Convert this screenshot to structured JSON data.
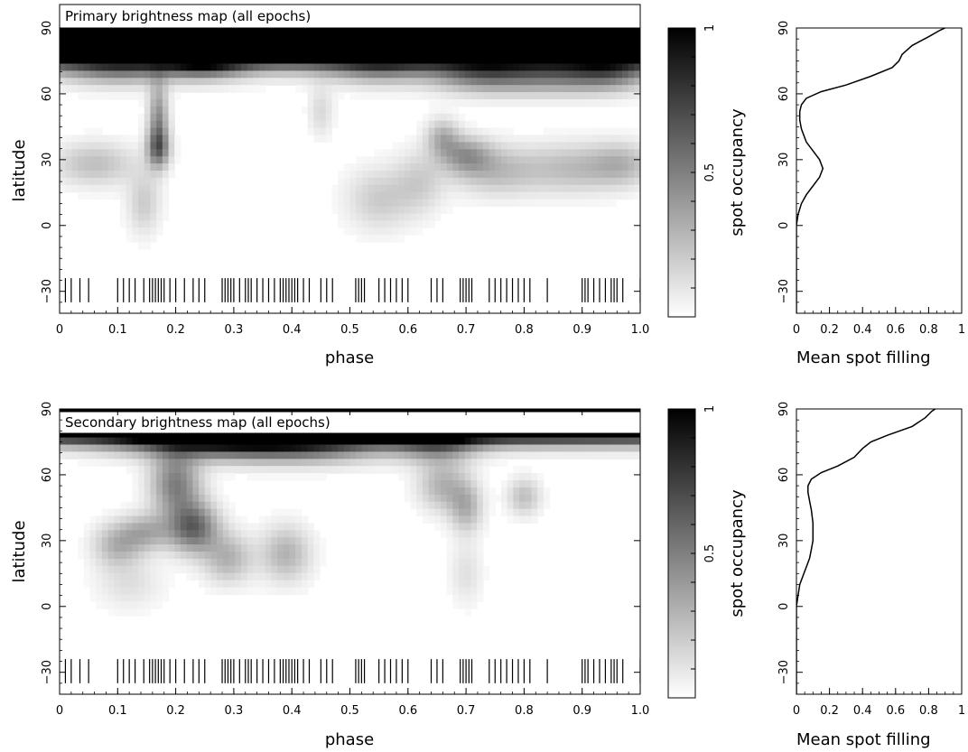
{
  "chart_data": [
    {
      "type": "heatmap",
      "title": "Primary brightness map (all epochs)",
      "xlabel": "phase",
      "ylabel": "latitude",
      "xlim": [
        0,
        1.0
      ],
      "ylim": [
        -40,
        90
      ],
      "xticks": [
        "0",
        "0.1",
        "0.2",
        "0.3",
        "0.4",
        "0.5",
        "0.6",
        "0.7",
        "0.8",
        "0.9",
        "1.0"
      ],
      "yticks": [
        "−30",
        "0",
        "30",
        "60",
        "90"
      ],
      "colorbar": {
        "label": "spot occupancy",
        "ticks": [
          "0.5",
          "1"
        ],
        "range": [
          0,
          1
        ]
      },
      "spots": [
        {
          "phase": 0.05,
          "lat": 84,
          "sx": 0.9,
          "sy": 7,
          "amp": 0.85
        },
        {
          "phase": 0.5,
          "lat": 84,
          "sx": 0.9,
          "sy": 7,
          "amp": 0.75
        },
        {
          "phase": 0.95,
          "lat": 84,
          "sx": 0.9,
          "sy": 7,
          "amp": 0.85
        },
        {
          "phase": 0.25,
          "lat": 76,
          "sx": 0.05,
          "sy": 6,
          "amp": 0.55
        },
        {
          "phase": 0.1,
          "lat": 72,
          "sx": 0.07,
          "sy": 6,
          "amp": 0.35
        },
        {
          "phase": 0.55,
          "lat": 72,
          "sx": 0.06,
          "sy": 6,
          "amp": 0.3
        },
        {
          "phase": 0.72,
          "lat": 69,
          "sx": 0.06,
          "sy": 6,
          "amp": 0.4
        },
        {
          "phase": 0.85,
          "lat": 68,
          "sx": 0.08,
          "sy": 6,
          "amp": 0.4
        },
        {
          "phase": 0.95,
          "lat": 70,
          "sx": 0.05,
          "sy": 6,
          "amp": 0.35
        },
        {
          "phase": 0.17,
          "lat": 48,
          "sx": 0.012,
          "sy": 12,
          "amp": 0.45
        },
        {
          "phase": 0.17,
          "lat": 35,
          "sx": 0.014,
          "sy": 6,
          "amp": 0.45
        },
        {
          "phase": 0.145,
          "lat": 10,
          "sx": 0.02,
          "sy": 10,
          "amp": 0.2
        },
        {
          "phase": 0.06,
          "lat": 28,
          "sx": 0.05,
          "sy": 7,
          "amp": 0.25
        },
        {
          "phase": 0.66,
          "lat": 40,
          "sx": 0.02,
          "sy": 6,
          "amp": 0.3
        },
        {
          "phase": 0.7,
          "lat": 32,
          "sx": 0.03,
          "sy": 6,
          "amp": 0.35
        },
        {
          "phase": 0.75,
          "lat": 25,
          "sx": 0.05,
          "sy": 8,
          "amp": 0.25
        },
        {
          "phase": 0.88,
          "lat": 26,
          "sx": 0.06,
          "sy": 8,
          "amp": 0.25
        },
        {
          "phase": 0.97,
          "lat": 28,
          "sx": 0.04,
          "sy": 7,
          "amp": 0.25
        },
        {
          "phase": 0.55,
          "lat": 12,
          "sx": 0.04,
          "sy": 10,
          "amp": 0.2
        },
        {
          "phase": 0.62,
          "lat": 20,
          "sx": 0.03,
          "sy": 10,
          "amp": 0.18
        },
        {
          "phase": 0.45,
          "lat": 52,
          "sx": 0.015,
          "sy": 8,
          "amp": 0.15
        }
      ],
      "observation_phases": [
        0.01,
        0.02,
        0.035,
        0.05,
        0.1,
        0.11,
        0.12,
        0.13,
        0.145,
        0.155,
        0.16,
        0.165,
        0.17,
        0.175,
        0.18,
        0.19,
        0.2,
        0.215,
        0.23,
        0.24,
        0.25,
        0.28,
        0.285,
        0.29,
        0.295,
        0.3,
        0.31,
        0.32,
        0.325,
        0.33,
        0.34,
        0.35,
        0.36,
        0.37,
        0.38,
        0.385,
        0.39,
        0.395,
        0.4,
        0.405,
        0.41,
        0.42,
        0.43,
        0.45,
        0.46,
        0.47,
        0.51,
        0.515,
        0.52,
        0.525,
        0.55,
        0.56,
        0.57,
        0.58,
        0.59,
        0.6,
        0.64,
        0.65,
        0.66,
        0.69,
        0.695,
        0.7,
        0.705,
        0.71,
        0.74,
        0.75,
        0.76,
        0.77,
        0.78,
        0.79,
        0.8,
        0.81,
        0.84,
        0.9,
        0.905,
        0.91,
        0.92,
        0.93,
        0.94,
        0.95,
        0.955,
        0.96,
        0.97,
        1.0
      ]
    },
    {
      "type": "line",
      "xlabel": "Mean spot filling",
      "ylabel": "",
      "xlim": [
        0,
        1
      ],
      "ylim": [
        -40,
        90
      ],
      "xticks": [
        "0",
        "0.2",
        "0.4",
        "0.6",
        "0.8",
        "1"
      ],
      "yticks": [
        "−30",
        "0",
        "30",
        "60",
        "90"
      ],
      "x": [
        0.0,
        0.0,
        0.0,
        0.01,
        0.03,
        0.06,
        0.1,
        0.14,
        0.16,
        0.14,
        0.1,
        0.06,
        0.03,
        0.02,
        0.02,
        0.03,
        0.06,
        0.15,
        0.3,
        0.45,
        0.58,
        0.62,
        0.64,
        0.7,
        0.8,
        0.87,
        0.9
      ],
      "y": [
        -40,
        -10,
        0,
        5,
        10,
        14,
        18,
        22,
        26,
        30,
        34,
        38,
        44,
        48,
        52,
        55,
        58,
        61,
        64,
        68,
        72,
        75,
        78,
        82,
        86,
        89,
        90
      ]
    },
    {
      "type": "heatmap",
      "title": "Secondary brightness map (all epochs)",
      "xlabel": "phase",
      "ylabel": "latitude",
      "xlim": [
        0,
        1.0
      ],
      "ylim": [
        -40,
        90
      ],
      "xticks": [
        "0",
        "0.1",
        "0.2",
        "0.3",
        "0.4",
        "0.5",
        "0.6",
        "0.7",
        "0.8",
        "0.9",
        "1.0"
      ],
      "yticks": [
        "−30",
        "0",
        "30",
        "60",
        "90"
      ],
      "colorbar": {
        "label": "spot occupancy",
        "ticks": [
          "0.5",
          "1"
        ],
        "range": [
          0,
          1
        ]
      },
      "spots": [
        {
          "phase": 0.05,
          "lat": 85,
          "sx": 0.9,
          "sy": 6,
          "amp": 0.95
        },
        {
          "phase": 0.5,
          "lat": 85,
          "sx": 0.9,
          "sy": 6,
          "amp": 0.95
        },
        {
          "phase": 0.95,
          "lat": 85,
          "sx": 0.9,
          "sy": 6,
          "amp": 0.95
        },
        {
          "phase": 0.25,
          "lat": 76,
          "sx": 0.1,
          "sy": 6,
          "amp": 0.6
        },
        {
          "phase": 0.42,
          "lat": 74,
          "sx": 0.1,
          "sy": 6,
          "amp": 0.55
        },
        {
          "phase": 0.65,
          "lat": 74,
          "sx": 0.05,
          "sy": 6,
          "amp": 0.4
        },
        {
          "phase": 0.2,
          "lat": 56,
          "sx": 0.03,
          "sy": 10,
          "amp": 0.5
        },
        {
          "phase": 0.23,
          "lat": 36,
          "sx": 0.03,
          "sy": 8,
          "amp": 0.6
        },
        {
          "phase": 0.1,
          "lat": 28,
          "sx": 0.03,
          "sy": 7,
          "amp": 0.3
        },
        {
          "phase": 0.15,
          "lat": 34,
          "sx": 0.03,
          "sy": 6,
          "amp": 0.3
        },
        {
          "phase": 0.29,
          "lat": 22,
          "sx": 0.03,
          "sy": 8,
          "amp": 0.3
        },
        {
          "phase": 0.39,
          "lat": 24,
          "sx": 0.03,
          "sy": 9,
          "amp": 0.3
        },
        {
          "phase": 0.12,
          "lat": 10,
          "sx": 0.04,
          "sy": 8,
          "amp": 0.12
        },
        {
          "phase": 0.66,
          "lat": 55,
          "sx": 0.03,
          "sy": 8,
          "amp": 0.3
        },
        {
          "phase": 0.7,
          "lat": 45,
          "sx": 0.02,
          "sy": 8,
          "amp": 0.3
        },
        {
          "phase": 0.8,
          "lat": 50,
          "sx": 0.02,
          "sy": 6,
          "amp": 0.25
        },
        {
          "phase": 0.7,
          "lat": 15,
          "sx": 0.02,
          "sy": 10,
          "amp": 0.12
        }
      ],
      "observation_phases": [
        0.01,
        0.02,
        0.035,
        0.05,
        0.1,
        0.11,
        0.12,
        0.13,
        0.145,
        0.155,
        0.16,
        0.165,
        0.17,
        0.175,
        0.18,
        0.19,
        0.2,
        0.215,
        0.23,
        0.24,
        0.25,
        0.28,
        0.285,
        0.29,
        0.295,
        0.3,
        0.31,
        0.32,
        0.325,
        0.33,
        0.34,
        0.35,
        0.36,
        0.37,
        0.38,
        0.385,
        0.39,
        0.395,
        0.4,
        0.405,
        0.41,
        0.42,
        0.43,
        0.45,
        0.46,
        0.47,
        0.51,
        0.515,
        0.52,
        0.525,
        0.55,
        0.56,
        0.57,
        0.58,
        0.59,
        0.6,
        0.64,
        0.65,
        0.66,
        0.69,
        0.695,
        0.7,
        0.705,
        0.71,
        0.74,
        0.75,
        0.76,
        0.77,
        0.78,
        0.79,
        0.8,
        0.81,
        0.84,
        0.9,
        0.905,
        0.91,
        0.92,
        0.93,
        0.94,
        0.95,
        0.955,
        0.96,
        0.97,
        1.0
      ]
    },
    {
      "type": "line",
      "xlabel": "Mean spot filling",
      "ylabel": "",
      "xlim": [
        0,
        1
      ],
      "ylim": [
        -40,
        90
      ],
      "xticks": [
        "0",
        "0.2",
        "0.4",
        "0.6",
        "0.8",
        "1"
      ],
      "yticks": [
        "−30",
        "0",
        "30",
        "60",
        "90"
      ],
      "x": [
        0.0,
        0.0,
        0.0,
        0.01,
        0.02,
        0.04,
        0.06,
        0.08,
        0.09,
        0.1,
        0.1,
        0.1,
        0.09,
        0.08,
        0.07,
        0.07,
        0.09,
        0.15,
        0.25,
        0.35,
        0.4,
        0.45,
        0.55,
        0.7,
        0.78,
        0.82,
        0.84
      ],
      "y": [
        -40,
        -10,
        0,
        5,
        10,
        14,
        18,
        22,
        26,
        30,
        34,
        38,
        44,
        48,
        52,
        55,
        58,
        61,
        64,
        68,
        72,
        75,
        78,
        82,
        86,
        89,
        90
      ]
    }
  ]
}
